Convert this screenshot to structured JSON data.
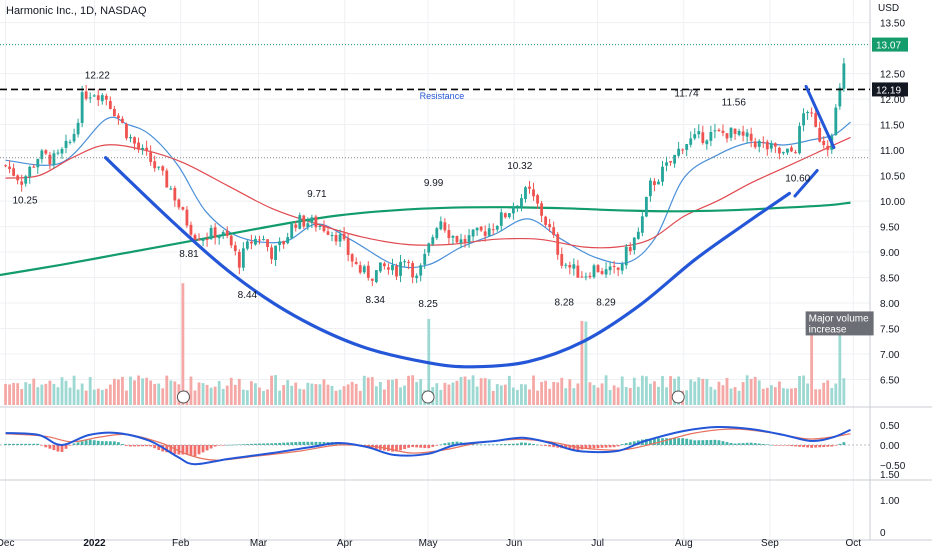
{
  "title": "Harmonic Inc., 1D, NASDAQ",
  "currency_label": "USD",
  "chart_data": {
    "type": "candlestick",
    "title": "Harmonic Inc., 1D, NASDAQ",
    "price_axis": {
      "range": [
        6.0,
        13.65
      ],
      "ticks": [
        "13.50",
        "12.50",
        "12.00",
        "11.50",
        "11.00",
        "10.50",
        "10.00",
        "9.50",
        "9.00",
        "8.50",
        "8.00",
        "7.50",
        "7.00",
        "6.50"
      ],
      "last_price_label": "13.07",
      "level_label": "12.19"
    },
    "x_axis": {
      "labels": [
        {
          "text": "Dec",
          "day": 0
        },
        {
          "text": "2022",
          "day": 32
        },
        {
          "text": "Feb",
          "day": 63
        },
        {
          "text": "Mar",
          "day": 91
        },
        {
          "text": "Apr",
          "day": 122
        },
        {
          "text": "May",
          "day": 152
        },
        {
          "text": "Jun",
          "day": 183
        },
        {
          "text": "Jul",
          "day": 213
        },
        {
          "text": "Aug",
          "day": 244
        },
        {
          "text": "Sep",
          "day": 275
        },
        {
          "text": "Oct",
          "day": 305
        }
      ],
      "day_range": [
        -2,
        311
      ]
    },
    "price_path": [
      [
        0,
        10.7
      ],
      [
        6,
        10.4
      ],
      [
        12,
        10.9
      ],
      [
        18,
        10.8
      ],
      [
        24,
        11.2
      ],
      [
        28,
        12.1
      ],
      [
        32,
        12.15
      ],
      [
        36,
        12.05
      ],
      [
        40,
        11.7
      ],
      [
        44,
        11.3
      ],
      [
        48,
        11.0
      ],
      [
        52,
        10.8
      ],
      [
        56,
        10.5
      ],
      [
        60,
        10.2
      ],
      [
        64,
        9.7
      ],
      [
        68,
        9.35
      ],
      [
        72,
        9.3
      ],
      [
        76,
        9.4
      ],
      [
        80,
        9.25
      ],
      [
        84,
        8.8
      ],
      [
        88,
        9.2
      ],
      [
        92,
        9.3
      ],
      [
        96,
        8.95
      ],
      [
        100,
        9.2
      ],
      [
        104,
        9.6
      ],
      [
        108,
        9.6
      ],
      [
        112,
        9.55
      ],
      [
        116,
        9.45
      ],
      [
        120,
        9.3
      ],
      [
        124,
        8.9
      ],
      [
        128,
        8.6
      ],
      [
        132,
        8.55
      ],
      [
        136,
        8.7
      ],
      [
        140,
        8.6
      ],
      [
        144,
        8.95
      ],
      [
        148,
        8.45
      ],
      [
        152,
        9.05
      ],
      [
        156,
        9.7
      ],
      [
        160,
        9.35
      ],
      [
        164,
        9.2
      ],
      [
        168,
        9.3
      ],
      [
        172,
        9.4
      ],
      [
        176,
        9.55
      ],
      [
        180,
        9.75
      ],
      [
        184,
        10.0
      ],
      [
        188,
        10.2
      ],
      [
        192,
        9.85
      ],
      [
        196,
        9.4
      ],
      [
        200,
        8.85
      ],
      [
        204,
        8.65
      ],
      [
        208,
        8.55
      ],
      [
        212,
        8.7
      ],
      [
        216,
        8.6
      ],
      [
        220,
        8.6
      ],
      [
        224,
        9.05
      ],
      [
        228,
        9.4
      ],
      [
        232,
        10.3
      ],
      [
        236,
        10.55
      ],
      [
        240,
        10.8
      ],
      [
        244,
        11.15
      ],
      [
        248,
        11.2
      ],
      [
        252,
        11.3
      ],
      [
        256,
        11.3
      ],
      [
        260,
        11.35
      ],
      [
        264,
        11.25
      ],
      [
        268,
        11.2
      ],
      [
        272,
        11.1
      ],
      [
        276,
        11.0
      ],
      [
        280,
        10.9
      ],
      [
        284,
        11.0
      ],
      [
        288,
        11.9
      ],
      [
        292,
        11.3
      ],
      [
        296,
        11.1
      ],
      [
        300,
        12.1
      ],
      [
        303,
        13.07
      ]
    ],
    "moving_averages": [
      {
        "color": "#4a90d9",
        "points": [
          [
            0,
            10.8
          ],
          [
            20,
            10.75
          ],
          [
            36,
            11.6
          ],
          [
            44,
            11.5
          ],
          [
            52,
            11.3
          ],
          [
            62,
            10.7
          ],
          [
            72,
            9.8
          ],
          [
            84,
            9.3
          ],
          [
            100,
            9.2
          ],
          [
            112,
            9.55
          ],
          [
            124,
            9.25
          ],
          [
            140,
            8.75
          ],
          [
            152,
            8.75
          ],
          [
            164,
            9.1
          ],
          [
            176,
            9.35
          ],
          [
            188,
            9.65
          ],
          [
            200,
            9.25
          ],
          [
            212,
            8.9
          ],
          [
            224,
            8.8
          ],
          [
            234,
            9.3
          ],
          [
            244,
            10.45
          ],
          [
            256,
            10.9
          ],
          [
            268,
            11.15
          ],
          [
            280,
            11.1
          ],
          [
            290,
            11.2
          ],
          [
            298,
            11.3
          ],
          [
            304,
            11.55
          ]
        ]
      },
      {
        "color": "#e0494f",
        "points": [
          [
            0,
            10.45
          ],
          [
            12,
            10.5
          ],
          [
            24,
            10.85
          ],
          [
            36,
            11.1
          ],
          [
            50,
            11.0
          ],
          [
            64,
            10.75
          ],
          [
            80,
            10.3
          ],
          [
            96,
            9.85
          ],
          [
            112,
            9.55
          ],
          [
            128,
            9.3
          ],
          [
            144,
            9.15
          ],
          [
            160,
            9.15
          ],
          [
            176,
            9.25
          ],
          [
            192,
            9.25
          ],
          [
            208,
            9.1
          ],
          [
            220,
            9.1
          ],
          [
            232,
            9.25
          ],
          [
            244,
            9.7
          ],
          [
            256,
            10.0
          ],
          [
            268,
            10.35
          ],
          [
            280,
            10.65
          ],
          [
            292,
            10.95
          ],
          [
            304,
            11.25
          ]
        ]
      },
      {
        "color": "#129c6c",
        "points": [
          [
            -2,
            8.55
          ],
          [
            20,
            8.75
          ],
          [
            40,
            8.95
          ],
          [
            60,
            9.15
          ],
          [
            80,
            9.35
          ],
          [
            100,
            9.55
          ],
          [
            120,
            9.72
          ],
          [
            140,
            9.82
          ],
          [
            160,
            9.87
          ],
          [
            180,
            9.88
          ],
          [
            200,
            9.86
          ],
          [
            220,
            9.82
          ],
          [
            240,
            9.8
          ],
          [
            260,
            9.82
          ],
          [
            280,
            9.87
          ],
          [
            296,
            9.92
          ],
          [
            304,
            9.97
          ]
        ]
      }
    ],
    "levels": [
      {
        "name": "resistance",
        "value": 12.19,
        "style": "dashed",
        "color": "#000000"
      },
      {
        "name": "last-price",
        "value": 13.07,
        "style": "dotted",
        "color": "#149c6c"
      },
      {
        "name": "support-reference",
        "value": 10.85,
        "style": "dotted",
        "color": "#888888"
      }
    ],
    "cup_curve": {
      "color": "#2456d8",
      "points": [
        [
          36,
          10.85
        ],
        [
          60,
          9.6
        ],
        [
          82,
          8.55
        ],
        [
          104,
          7.75
        ],
        [
          128,
          7.15
        ],
        [
          152,
          6.83
        ],
        [
          168,
          6.75
        ],
        [
          188,
          6.85
        ],
        [
          208,
          7.25
        ],
        [
          228,
          7.95
        ],
        [
          248,
          8.85
        ],
        [
          266,
          9.55
        ],
        [
          282,
          10.15
        ]
      ]
    },
    "handle": {
      "color": "#2456d8",
      "segments": [
        [
          [
            288,
            12.25
          ],
          [
            298,
            11.05
          ]
        ],
        [
          [
            284,
            10.1
          ],
          [
            292,
            10.6
          ]
        ]
      ]
    },
    "price_labels": [
      {
        "text": "12.22",
        "day": 33,
        "price": 12.4
      },
      {
        "text": "10.25",
        "day": 7,
        "price": 9.95
      },
      {
        "text": "8.81",
        "day": 66,
        "price": 8.9
      },
      {
        "text": "8.44",
        "day": 87,
        "price": 8.1
      },
      {
        "text": "9.71",
        "day": 112,
        "price": 10.08
      },
      {
        "text": "8.34",
        "day": 133,
        "price": 8.0
      },
      {
        "text": "9.99",
        "day": 154,
        "price": 10.3
      },
      {
        "text": "8.25",
        "day": 152,
        "price": 7.92
      },
      {
        "text": "10.32",
        "day": 185,
        "price": 10.63
      },
      {
        "text": "8.28",
        "day": 201,
        "price": 7.95
      },
      {
        "text": "8.29",
        "day": 216,
        "price": 7.95
      },
      {
        "text": "11.74",
        "day": 245,
        "price": 12.05
      },
      {
        "text": "11.56",
        "day": 262,
        "price": 11.87
      },
      {
        "text": "10.60",
        "day": 285,
        "price": 10.38
      }
    ],
    "annotations": [
      {
        "text": "Resistance",
        "day": 157,
        "price": 12.0,
        "color": "#2456d8"
      },
      {
        "text": "Major volume\nincrease",
        "day": 290,
        "price": 7.62,
        "boxed": true
      }
    ],
    "volume": {
      "earnings_markers_day": [
        64,
        152,
        242
      ],
      "spike_days": [
        64,
        152,
        208,
        290,
        300,
        304
      ]
    },
    "macd": {
      "ticks": [
        "0.50",
        "0.00",
        "−0.50",
        "1.00",
        "1.50",
        "0"
      ],
      "range": [
        -0.75,
        0.75
      ],
      "macd_line": {
        "color": "#2456d8",
        "points": [
          [
            0,
            0.3
          ],
          [
            12,
            0.25
          ],
          [
            20,
            0.0
          ],
          [
            30,
            0.25
          ],
          [
            40,
            0.3
          ],
          [
            52,
            0.1
          ],
          [
            62,
            -0.3
          ],
          [
            68,
            -0.48
          ],
          [
            80,
            -0.35
          ],
          [
            96,
            -0.2
          ],
          [
            110,
            -0.05
          ],
          [
            120,
            0.05
          ],
          [
            130,
            -0.05
          ],
          [
            140,
            -0.25
          ],
          [
            152,
            -0.22
          ],
          [
            162,
            0.0
          ],
          [
            176,
            0.1
          ],
          [
            186,
            0.18
          ],
          [
            196,
            0.05
          ],
          [
            206,
            -0.15
          ],
          [
            220,
            -0.15
          ],
          [
            230,
            0.1
          ],
          [
            244,
            0.35
          ],
          [
            256,
            0.45
          ],
          [
            268,
            0.4
          ],
          [
            280,
            0.25
          ],
          [
            290,
            0.1
          ],
          [
            298,
            0.2
          ],
          [
            304,
            0.38
          ]
        ]
      },
      "signal_line": {
        "color": "#e5715f",
        "points": [
          [
            0,
            0.28
          ],
          [
            14,
            0.22
          ],
          [
            24,
            0.08
          ],
          [
            34,
            0.2
          ],
          [
            44,
            0.26
          ],
          [
            56,
            0.05
          ],
          [
            66,
            -0.25
          ],
          [
            76,
            -0.38
          ],
          [
            90,
            -0.28
          ],
          [
            106,
            -0.15
          ],
          [
            120,
            0.0
          ],
          [
            134,
            -0.05
          ],
          [
            146,
            -0.2
          ],
          [
            158,
            -0.12
          ],
          [
            170,
            0.05
          ],
          [
            184,
            0.14
          ],
          [
            196,
            0.08
          ],
          [
            208,
            -0.08
          ],
          [
            222,
            -0.12
          ],
          [
            234,
            0.05
          ],
          [
            248,
            0.3
          ],
          [
            262,
            0.4
          ],
          [
            276,
            0.3
          ],
          [
            290,
            0.15
          ],
          [
            304,
            0.28
          ]
        ]
      }
    }
  }
}
